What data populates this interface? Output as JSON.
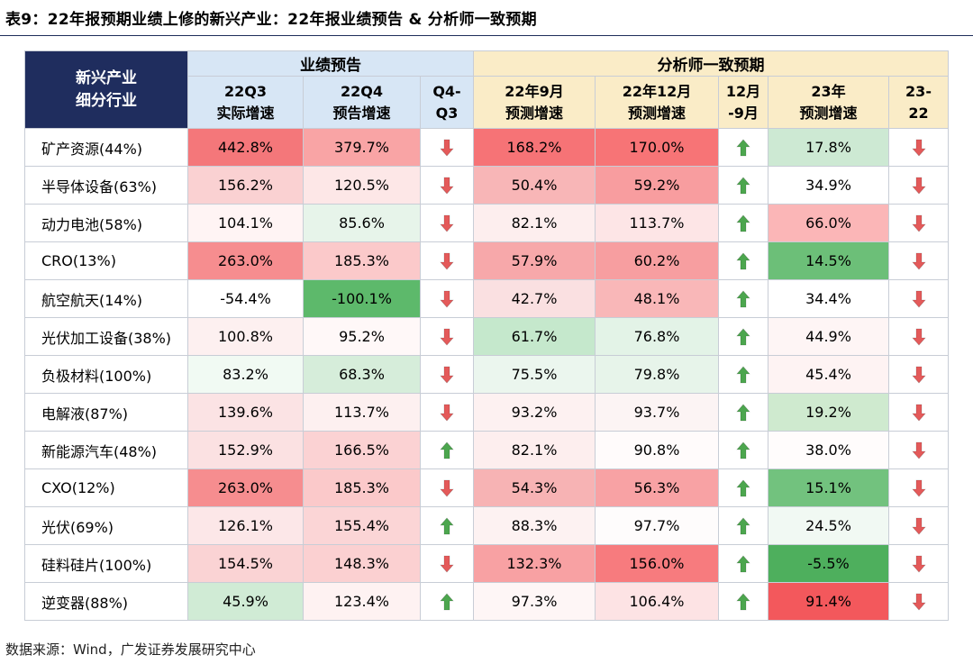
{
  "title": "表9：22年报预期业绩上修的新兴产业：22年报业绩预告 & 分析师一致预期",
  "source": "数据来源：Wind，广发证券发展研究中心",
  "header": {
    "corner": [
      "新兴产业",
      "细分行业"
    ],
    "group_forecast": "业绩预告",
    "group_consensus": "分析师一致预期",
    "columns": [
      [
        "22Q3",
        "实际增速"
      ],
      [
        "22Q4",
        "预告增速"
      ],
      [
        "Q4-",
        "Q3"
      ],
      [
        "22年9月",
        "预测增速"
      ],
      [
        "22年12月",
        "预测增速"
      ],
      [
        "12月",
        "-9月"
      ],
      [
        "23年",
        "预测增速"
      ],
      [
        "23-",
        "22"
      ]
    ]
  },
  "colors": {
    "arrow_up": "#4ca64e",
    "arrow_down": "#e45a5a",
    "header_navy": "#1f2d5e",
    "header_blue": "#d7e6f5",
    "header_yellow": "#faecc7"
  },
  "rows": [
    {
      "name": "矿产资源(44%)",
      "q3": "442.8%",
      "q4": "379.7%",
      "q4q3": "down",
      "sep": "168.2%",
      "dec": "170.0%",
      "decsep": "up",
      "y23": "17.8%",
      "y23y22": "down"
    },
    {
      "name": "半导体设备(63%)",
      "q3": "156.2%",
      "q4": "120.5%",
      "q4q3": "down",
      "sep": "50.4%",
      "dec": "59.2%",
      "decsep": "up",
      "y23": "34.9%",
      "y23y22": "down"
    },
    {
      "name": "动力电池(58%)",
      "q3": "104.1%",
      "q4": "85.6%",
      "q4q3": "down",
      "sep": "82.1%",
      "dec": "113.7%",
      "decsep": "up",
      "y23": "66.0%",
      "y23y22": "down"
    },
    {
      "name": "CRO(13%)",
      "q3": "263.0%",
      "q4": "185.3%",
      "q4q3": "down",
      "sep": "57.9%",
      "dec": "60.2%",
      "decsep": "up",
      "y23": "14.5%",
      "y23y22": "down"
    },
    {
      "name": "航空航天(14%)",
      "q3": "-54.4%",
      "q4": "-100.1%",
      "q4q3": "down",
      "sep": "42.7%",
      "dec": "48.1%",
      "decsep": "up",
      "y23": "34.4%",
      "y23y22": "down"
    },
    {
      "name": "光伏加工设备(38%)",
      "q3": "100.8%",
      "q4": "95.2%",
      "q4q3": "down",
      "sep": "61.7%",
      "dec": "76.8%",
      "decsep": "up",
      "y23": "44.9%",
      "y23y22": "down"
    },
    {
      "name": "负极材料(100%)",
      "q3": "83.2%",
      "q4": "68.3%",
      "q4q3": "down",
      "sep": "75.5%",
      "dec": "79.8%",
      "decsep": "up",
      "y23": "45.4%",
      "y23y22": "down"
    },
    {
      "name": "电解液(87%)",
      "q3": "139.6%",
      "q4": "113.7%",
      "q4q3": "down",
      "sep": "93.2%",
      "dec": "93.7%",
      "decsep": "up",
      "y23": "19.2%",
      "y23y22": "down"
    },
    {
      "name": "新能源汽车(48%)",
      "q3": "152.9%",
      "q4": "166.5%",
      "q4q3": "up",
      "sep": "82.1%",
      "dec": "90.8%",
      "decsep": "up",
      "y23": "38.0%",
      "y23y22": "down"
    },
    {
      "name": "CXO(12%)",
      "q3": "263.0%",
      "q4": "185.3%",
      "q4q3": "down",
      "sep": "54.3%",
      "dec": "56.3%",
      "decsep": "up",
      "y23": "15.1%",
      "y23y22": "down"
    },
    {
      "name": "光伏(69%)",
      "q3": "126.1%",
      "q4": "155.4%",
      "q4q3": "up",
      "sep": "88.3%",
      "dec": "97.7%",
      "decsep": "up",
      "y23": "24.5%",
      "y23y22": "down"
    },
    {
      "name": "硅料硅片(100%)",
      "q3": "154.5%",
      "q4": "148.3%",
      "q4q3": "down",
      "sep": "132.3%",
      "dec": "156.0%",
      "decsep": "up",
      "y23": "-5.5%",
      "y23y22": "down"
    },
    {
      "name": "逆变器(88%)",
      "q3": "45.9%",
      "q4": "123.4%",
      "q4q3": "up",
      "sep": "97.3%",
      "dec": "106.4%",
      "decsep": "up",
      "y23": "91.4%",
      "y23y22": "down"
    }
  ],
  "heat_colors": {
    "q3": [
      "#f4777a",
      "#fad1d2",
      "#fff4f4",
      "#f68d8f",
      "#ffffff",
      "#fdf0f0",
      "#f1faf3",
      "#fbe3e4",
      "#fbe1e2",
      "#f68d8f",
      "#fce7e8",
      "#fad3d4",
      "#d0ebd5"
    ],
    "q4": [
      "#f9a4a5",
      "#fde7e7",
      "#e7f4ea",
      "#fbc9ca",
      "#5db96b",
      "#fff8f8",
      "#d6edda",
      "#fdf0f0",
      "#fbd2d3",
      "#fbc9ca",
      "#fbd5d6",
      "#fbd0d1",
      "#fef2f2"
    ],
    "sep": [
      "#f67376",
      "#f8b6b7",
      "#fdeeee",
      "#f7a8aa",
      "#fae0e1",
      "#c5e8cc",
      "#ebf6ee",
      "#fdf1f1",
      "#fdeeee",
      "#f7b3b4",
      "#fdf2f2",
      "#f8a1a3",
      "#fef6f6"
    ],
    "dec": [
      "#f77476",
      "#f89d9f",
      "#fde5e6",
      "#f79ea0",
      "#f9b7b8",
      "#e3f3e7",
      "#e7f4ea",
      "#fcf4f4",
      "#fffbfb",
      "#f8a2a4",
      "#fefcfc",
      "#f77b7e",
      "#fde3e4"
    ],
    "y23": [
      "#cde9d3",
      "#ffffff",
      "#fbb6b7",
      "#6cbf78",
      "#ffffff",
      "#fef5f5",
      "#fef3f3",
      "#cfeacf",
      "#fffcfc",
      "#72c27e",
      "#f1f9f3",
      "#4eaf5d",
      "#f3585c"
    ]
  }
}
